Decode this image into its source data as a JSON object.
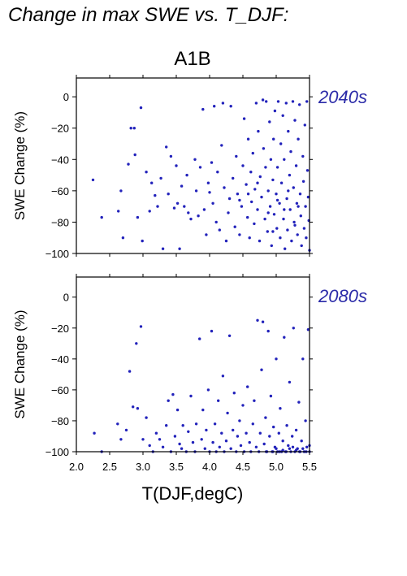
{
  "figure": {
    "title": "Change in max SWE vs. T_DJF:",
    "scenario": "A1B",
    "xlabel": "T(DJF,degC)",
    "accent_color": "#2a2aa8",
    "point_color": "#2222bb"
  },
  "chart_data": [
    {
      "type": "scatter",
      "panel_label": "2040s",
      "ylabel": "SWE Change (%)",
      "xlim": [
        2.0,
        5.5
      ],
      "ylim": [
        -100,
        12
      ],
      "xticks": [
        2.0,
        2.5,
        3.0,
        3.5,
        4.0,
        4.5,
        5.0,
        5.5
      ],
      "xtick_labels": [
        "2.0",
        "2.5",
        "3.0",
        "3.5",
        "4.0",
        "4.5",
        "5.0",
        "5.5"
      ],
      "show_xtick_labels": false,
      "yticks": [
        0,
        -20,
        -40,
        -60,
        -80,
        -100
      ],
      "ytick_labels": [
        "0",
        "−20",
        "−40",
        "−60",
        "−80",
        "−100"
      ],
      "points": [
        [
          2.25,
          -53
        ],
        [
          2.38,
          -77
        ],
        [
          2.63,
          -73
        ],
        [
          2.67,
          -60
        ],
        [
          2.7,
          -90
        ],
        [
          2.78,
          -43
        ],
        [
          2.82,
          -20
        ],
        [
          2.87,
          -20
        ],
        [
          2.88,
          -37
        ],
        [
          2.92,
          -77
        ],
        [
          2.97,
          -7
        ],
        [
          2.99,
          -92
        ],
        [
          3.05,
          -48
        ],
        [
          3.1,
          -73
        ],
        [
          3.13,
          -55
        ],
        [
          3.18,
          -63
        ],
        [
          3.22,
          -70
        ],
        [
          3.27,
          -52
        ],
        [
          3.3,
          -97
        ],
        [
          3.35,
          -32
        ],
        [
          3.38,
          -62
        ],
        [
          3.42,
          -38
        ],
        [
          3.47,
          -71
        ],
        [
          3.5,
          -44
        ],
        [
          3.52,
          -68
        ],
        [
          3.55,
          -97
        ],
        [
          3.58,
          -57
        ],
        [
          3.62,
          -70
        ],
        [
          3.66,
          -50
        ],
        [
          3.68,
          -74
        ],
        [
          3.72,
          -78
        ],
        [
          3.78,
          -40
        ],
        [
          3.8,
          -60
        ],
        [
          3.83,
          -76
        ],
        [
          3.86,
          -45
        ],
        [
          3.9,
          -8
        ],
        [
          3.92,
          -72
        ],
        [
          3.95,
          -88
        ],
        [
          3.98,
          -55
        ],
        [
          4.0,
          -61
        ],
        [
          4.03,
          -42
        ],
        [
          4.05,
          -68
        ],
        [
          4.07,
          -6
        ],
        [
          4.1,
          -80
        ],
        [
          4.12,
          -48
        ],
        [
          4.15,
          -85
        ],
        [
          4.18,
          -31
        ],
        [
          4.2,
          -4
        ],
        [
          4.22,
          -58
        ],
        [
          4.25,
          -92
        ],
        [
          4.28,
          -74
        ],
        [
          4.3,
          -65
        ],
        [
          4.32,
          -6
        ],
        [
          4.35,
          -52
        ],
        [
          4.38,
          -83
        ],
        [
          4.4,
          -38
        ],
        [
          4.42,
          -62
        ],
        [
          4.45,
          -88
        ],
        [
          4.48,
          -70
        ],
        [
          4.5,
          -44
        ],
        [
          4.52,
          -14
        ],
        [
          4.55,
          -56
        ],
        [
          4.57,
          -77
        ],
        [
          4.58,
          -27
        ],
        [
          4.6,
          -90
        ],
        [
          4.62,
          -48
        ],
        [
          4.63,
          -67
        ],
        [
          4.65,
          -36
        ],
        [
          4.67,
          -81
        ],
        [
          4.68,
          -59
        ],
        [
          4.7,
          -4
        ],
        [
          4.72,
          -72
        ],
        [
          4.73,
          -22
        ],
        [
          4.75,
          -92
        ],
        [
          4.76,
          -51
        ],
        [
          4.78,
          -64
        ],
        [
          4.8,
          -2
        ],
        [
          4.81,
          -33
        ],
        [
          4.83,
          -78
        ],
        [
          4.84,
          -45
        ],
        [
          4.85,
          -3
        ],
        [
          4.87,
          -86
        ],
        [
          4.88,
          -60
        ],
        [
          4.9,
          -16
        ],
        [
          4.91,
          -70
        ],
        [
          4.92,
          -40
        ],
        [
          4.93,
          -95
        ],
        [
          4.95,
          -53
        ],
        [
          4.96,
          -27
        ],
        [
          4.97,
          -75
        ],
        [
          4.98,
          -9
        ],
        [
          5.0,
          -62
        ],
        [
          5.01,
          -84
        ],
        [
          5.02,
          -45
        ],
        [
          5.03,
          -3
        ],
        [
          5.05,
          -68
        ],
        [
          5.06,
          -90
        ],
        [
          5.07,
          -30
        ],
        [
          5.08,
          -55
        ],
        [
          5.1,
          -12
        ],
        [
          5.11,
          -78
        ],
        [
          5.12,
          -40
        ],
        [
          5.13,
          -97
        ],
        [
          5.15,
          -4
        ],
        [
          5.16,
          -65
        ],
        [
          5.17,
          -85
        ],
        [
          5.18,
          -22
        ],
        [
          5.2,
          -50
        ],
        [
          5.21,
          -72
        ],
        [
          5.22,
          -35
        ],
        [
          5.23,
          -92
        ],
        [
          5.25,
          -3
        ],
        [
          5.26,
          -58
        ],
        [
          5.27,
          -80
        ],
        [
          5.28,
          -15
        ],
        [
          5.3,
          -44
        ],
        [
          5.31,
          -68
        ],
        [
          5.32,
          -88
        ],
        [
          5.33,
          -27
        ],
        [
          5.35,
          -5
        ],
        [
          5.36,
          -62
        ],
        [
          5.37,
          -76
        ],
        [
          5.38,
          -95
        ],
        [
          5.4,
          -38
        ],
        [
          5.41,
          -54
        ],
        [
          5.42,
          -84
        ],
        [
          5.43,
          -18
        ],
        [
          5.44,
          -70
        ],
        [
          5.45,
          -90
        ],
        [
          5.46,
          -3
        ],
        [
          5.47,
          -47
        ],
        [
          5.48,
          -64
        ],
        [
          5.49,
          -79
        ],
        [
          5.5,
          -98
        ],
        [
          4.58,
          -62
        ],
        [
          4.72,
          -55
        ],
        [
          4.88,
          -74
        ],
        [
          5.02,
          -66
        ],
        [
          5.18,
          -60
        ],
        [
          5.33,
          -70
        ],
        [
          4.45,
          -66
        ],
        [
          4.95,
          -86
        ],
        [
          5.12,
          -72
        ],
        [
          5.28,
          -82
        ]
      ]
    },
    {
      "type": "scatter",
      "panel_label": "2080s",
      "ylabel": "SWE Change (%)",
      "xlim": [
        2.0,
        5.5
      ],
      "ylim": [
        -100,
        13
      ],
      "xticks": [
        2.0,
        2.5,
        3.0,
        3.5,
        4.0,
        4.5,
        5.0,
        5.5
      ],
      "xtick_labels": [
        "2.0",
        "2.5",
        "3.0",
        "3.5",
        "4.0",
        "4.5",
        "5.0",
        "5.5"
      ],
      "show_xtick_labels": true,
      "yticks": [
        0,
        -20,
        -40,
        -60,
        -80,
        -100
      ],
      "ytick_labels": [
        "0",
        "−20",
        "−40",
        "−60",
        "−80",
        "−100"
      ],
      "points": [
        [
          2.27,
          -88
        ],
        [
          2.38,
          -100
        ],
        [
          2.62,
          -82
        ],
        [
          2.67,
          -92
        ],
        [
          2.75,
          -86
        ],
        [
          2.8,
          -48
        ],
        [
          2.85,
          -71
        ],
        [
          2.9,
          -30
        ],
        [
          2.92,
          -72
        ],
        [
          2.97,
          -19
        ],
        [
          3.0,
          -92
        ],
        [
          3.05,
          -78
        ],
        [
          3.1,
          -96
        ],
        [
          3.15,
          -100
        ],
        [
          3.2,
          -88
        ],
        [
          3.25,
          -92
        ],
        [
          3.3,
          -97
        ],
        [
          3.35,
          -83
        ],
        [
          3.38,
          -67
        ],
        [
          3.42,
          -100
        ],
        [
          3.45,
          -63
        ],
        [
          3.48,
          -90
        ],
        [
          3.52,
          -73
        ],
        [
          3.55,
          -95
        ],
        [
          3.58,
          -98
        ],
        [
          3.6,
          -83
        ],
        [
          3.65,
          -100
        ],
        [
          3.68,
          -87
        ],
        [
          3.72,
          -64
        ],
        [
          3.75,
          -94
        ],
        [
          3.78,
          -100
        ],
        [
          3.8,
          -82
        ],
        [
          3.85,
          -27
        ],
        [
          3.88,
          -92
        ],
        [
          3.9,
          -73
        ],
        [
          3.93,
          -98
        ],
        [
          3.95,
          -86
        ],
        [
          3.98,
          -60
        ],
        [
          4.0,
          -100
        ],
        [
          4.03,
          -22
        ],
        [
          4.05,
          -94
        ],
        [
          4.08,
          -82
        ],
        [
          4.1,
          -100
        ],
        [
          4.13,
          -67
        ],
        [
          4.15,
          -97
        ],
        [
          4.18,
          -88
        ],
        [
          4.2,
          -51
        ],
        [
          4.22,
          -100
        ],
        [
          4.25,
          -93
        ],
        [
          4.27,
          -75
        ],
        [
          4.3,
          -25
        ],
        [
          4.32,
          -98
        ],
        [
          4.35,
          -86
        ],
        [
          4.37,
          -62
        ],
        [
          4.4,
          -100
        ],
        [
          4.42,
          -90
        ],
        [
          4.45,
          -80
        ],
        [
          4.47,
          -96
        ],
        [
          4.5,
          -70
        ],
        [
          4.52,
          -100
        ],
        [
          4.55,
          -88
        ],
        [
          4.57,
          -58
        ],
        [
          4.6,
          -94
        ],
        [
          4.62,
          -100
        ],
        [
          4.65,
          -82
        ],
        [
          4.67,
          -67
        ],
        [
          4.7,
          -97
        ],
        [
          4.72,
          -15
        ],
        [
          4.74,
          -100
        ],
        [
          4.76,
          -88
        ],
        [
          4.78,
          -47
        ],
        [
          4.8,
          -16
        ],
        [
          4.82,
          -95
        ],
        [
          4.84,
          -78
        ],
        [
          4.86,
          -100
        ],
        [
          4.88,
          -22
        ],
        [
          4.9,
          -90
        ],
        [
          4.92,
          -64
        ],
        [
          4.94,
          -100
        ],
        [
          4.96,
          -84
        ],
        [
          4.98,
          -97
        ],
        [
          5.0,
          -40
        ],
        [
          5.02,
          -100
        ],
        [
          5.04,
          -88
        ],
        [
          5.06,
          -72
        ],
        [
          5.08,
          -100
        ],
        [
          5.1,
          -93
        ],
        [
          5.12,
          -26
        ],
        [
          5.14,
          -100
        ],
        [
          5.16,
          -83
        ],
        [
          5.18,
          -96
        ],
        [
          5.2,
          -55
        ],
        [
          5.22,
          -100
        ],
        [
          5.24,
          -90
        ],
        [
          5.26,
          -20
        ],
        [
          5.28,
          -100
        ],
        [
          5.3,
          -86
        ],
        [
          5.32,
          -98
        ],
        [
          5.34,
          -68
        ],
        [
          5.36,
          -100
        ],
        [
          5.38,
          -93
        ],
        [
          5.4,
          -40
        ],
        [
          5.42,
          -100
        ],
        [
          5.44,
          -80
        ],
        [
          5.46,
          -97
        ],
        [
          5.48,
          -21
        ],
        [
          5.5,
          -100
        ],
        [
          4.85,
          -100
        ],
        [
          4.95,
          -100
        ],
        [
          5.05,
          -100
        ],
        [
          5.15,
          -100
        ],
        [
          5.25,
          -97
        ],
        [
          5.35,
          -100
        ],
        [
          5.45,
          -100
        ],
        [
          5.0,
          -98
        ],
        [
          5.1,
          -99
        ],
        [
          5.2,
          -98
        ],
        [
          5.3,
          -99
        ],
        [
          5.4,
          -98
        ],
        [
          5.5,
          -96
        ]
      ]
    }
  ]
}
